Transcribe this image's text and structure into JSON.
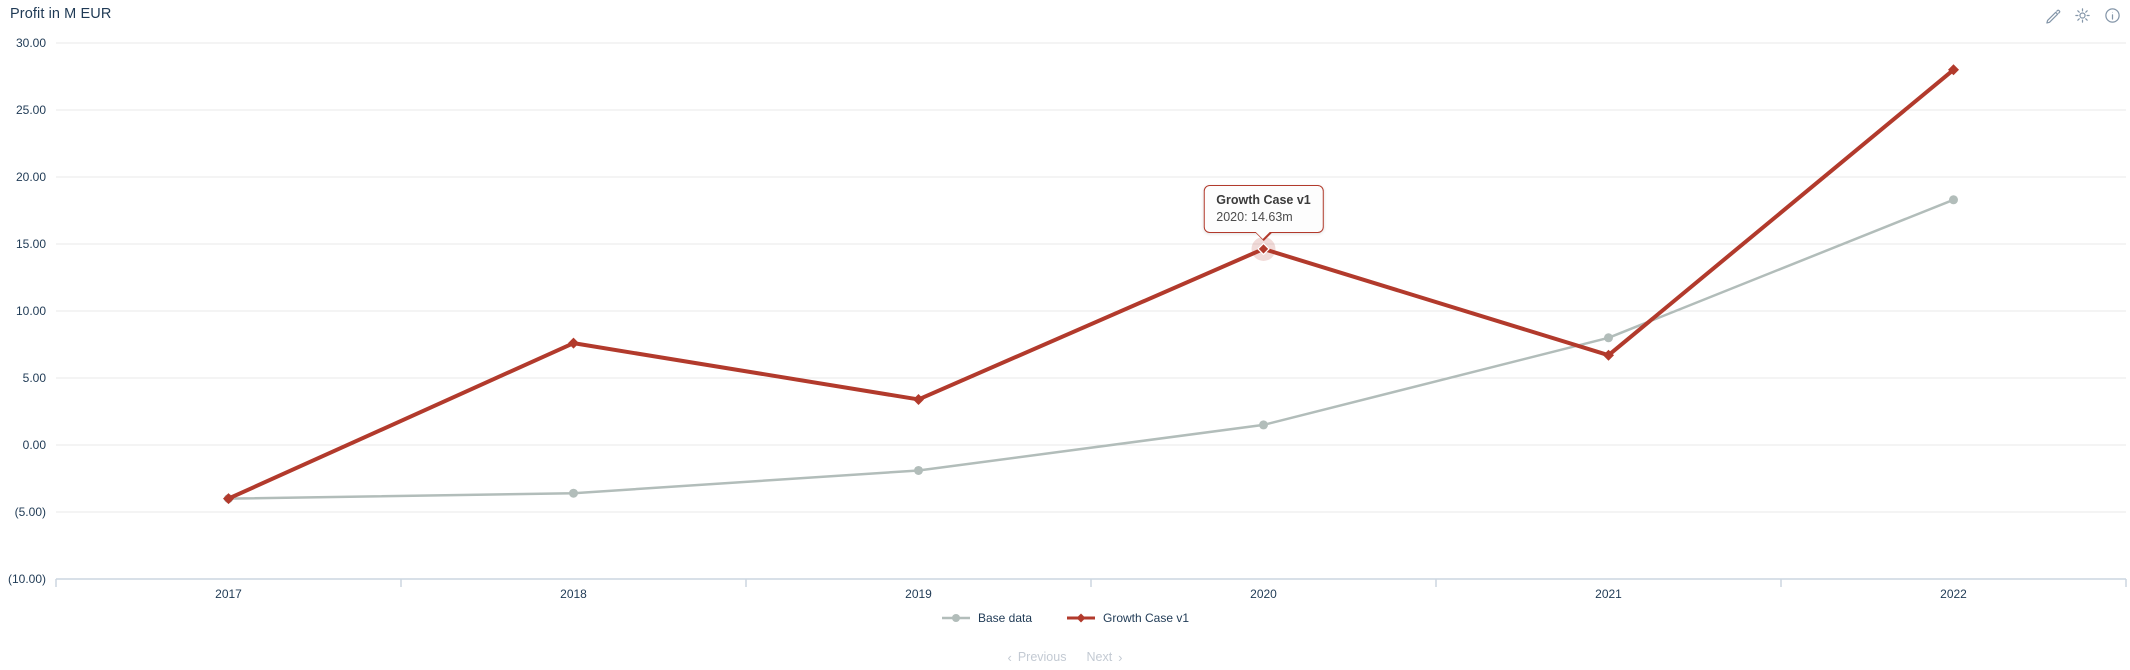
{
  "header": {
    "title": "Profit in M EUR",
    "icons": [
      {
        "name": "edit-icon"
      },
      {
        "name": "settings-icon"
      },
      {
        "name": "info-icon"
      }
    ]
  },
  "chart_data": {
    "type": "line",
    "title": "Profit in M EUR",
    "unit": "M EUR",
    "categories": [
      "2017",
      "2018",
      "2019",
      "2020",
      "2021",
      "2022"
    ],
    "series": [
      {
        "name": "Base data",
        "color": "#b2bdba",
        "marker": "circle",
        "values": [
          -4.0,
          -3.6,
          -1.9,
          1.5,
          8.0,
          18.3
        ]
      },
      {
        "name": "Growth Case v1",
        "color": "#b23a2c",
        "marker": "diamond",
        "values": [
          -4.0,
          7.6,
          3.4,
          14.63,
          6.7,
          28.0
        ]
      }
    ],
    "y_axis": {
      "min": -10,
      "max": 30,
      "step": 5,
      "negative_format": "parentheses",
      "labels": [
        "30.00",
        "25.00",
        "20.00",
        "15.00",
        "10.00",
        "5.00",
        "0.00",
        "(5.00)",
        "(10.00)"
      ]
    },
    "grid": "horizontal",
    "legend_position": "bottom",
    "tooltip": {
      "series": "Growth Case v1",
      "series_index": 1,
      "point_index": 3,
      "title": "Growth Case v1",
      "text": "2020: 14.63m",
      "category": "2020",
      "value": 14.63
    }
  },
  "legend": {
    "items": [
      {
        "label": "Base data",
        "color": "#b2bdba",
        "marker": "circle"
      },
      {
        "label": "Growth Case v1",
        "color": "#b23a2c",
        "marker": "diamond"
      }
    ]
  },
  "pagination": {
    "previous": "Previous",
    "next": "Next",
    "prev_icon": "‹",
    "next_icon": "›"
  },
  "colors": {
    "accent_red": "#b23a2c",
    "series_gray": "#b2bdba",
    "text_navy": "#1f3a55",
    "grid": "#e8e8e8",
    "axis": "#ccd6e0",
    "icon_gray": "#8496a9",
    "pagination_gray": "#c3cad3"
  }
}
